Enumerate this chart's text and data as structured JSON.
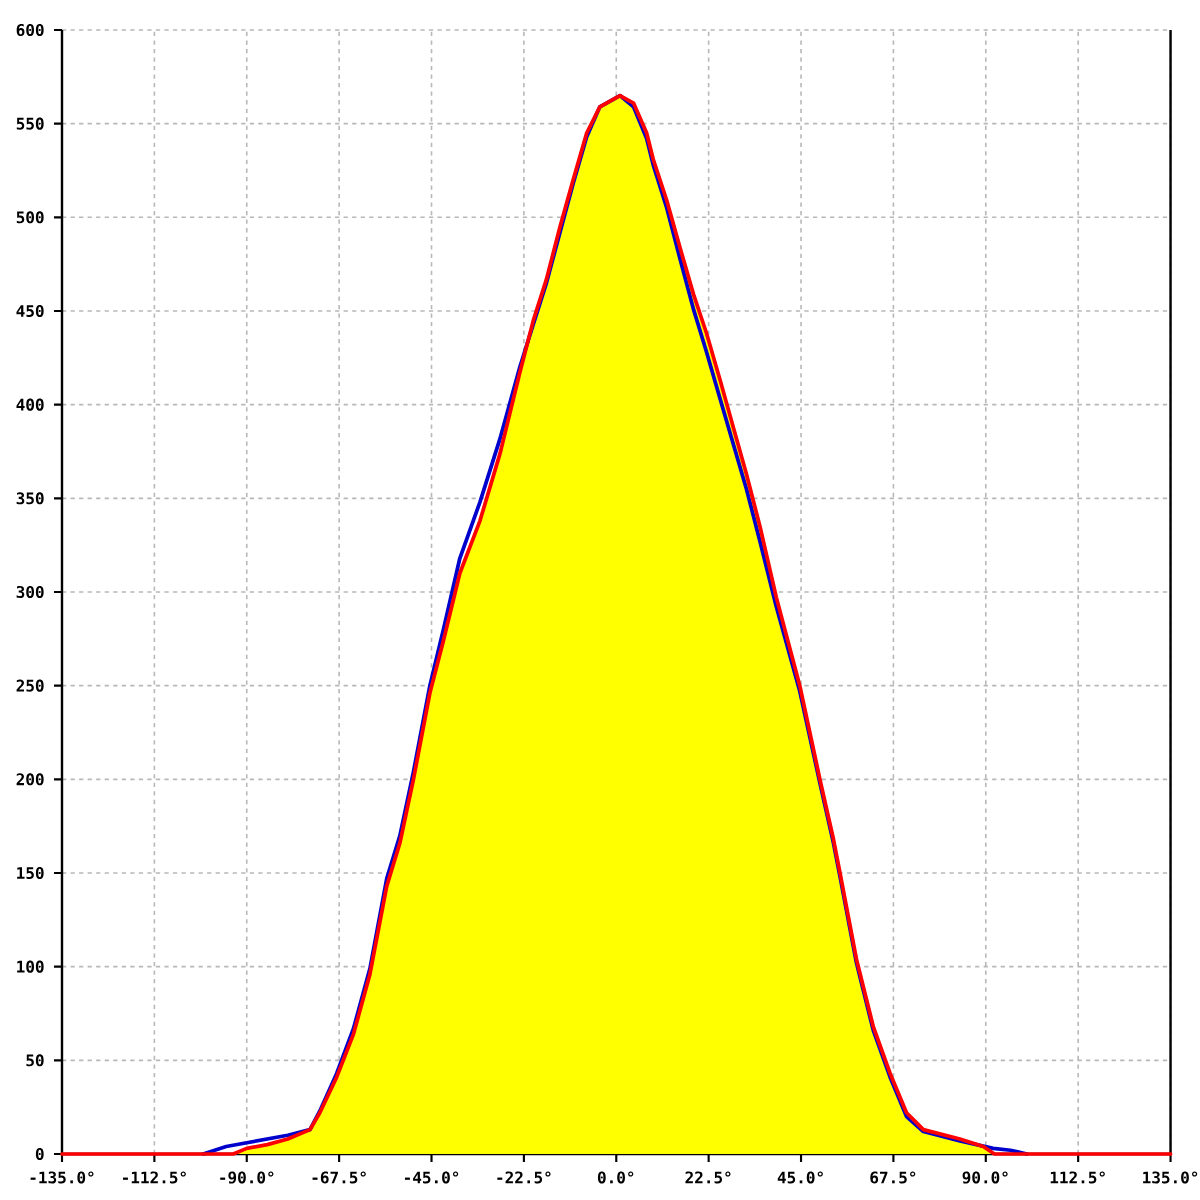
{
  "chart_data": {
    "type": "line",
    "xlim": [
      -135,
      135
    ],
    "ylim": [
      0,
      600
    ],
    "grid": true,
    "xticks": [
      {
        "value": -135,
        "label": "-135.0°"
      },
      {
        "value": -112.5,
        "label": "-112.5°"
      },
      {
        "value": -90,
        "label": "-90.0°"
      },
      {
        "value": -67.5,
        "label": "-67.5°"
      },
      {
        "value": -45,
        "label": "-45.0°"
      },
      {
        "value": -22.5,
        "label": "-22.5°"
      },
      {
        "value": 0,
        "label": "0.0°"
      },
      {
        "value": 22.5,
        "label": "22.5°"
      },
      {
        "value": 45,
        "label": "45.0°"
      },
      {
        "value": 67.5,
        "label": "67.5°"
      },
      {
        "value": 90,
        "label": "90.0°"
      },
      {
        "value": 112.5,
        "label": "112.5°"
      },
      {
        "value": 135,
        "label": "135.0°"
      }
    ],
    "yticks": [
      0,
      50,
      100,
      150,
      200,
      250,
      300,
      350,
      400,
      450,
      500,
      550,
      600
    ],
    "series": [
      {
        "type": "area",
        "color": "#ffff00",
        "x": [
          -93.3,
          -90,
          -85,
          -80,
          -74.6,
          -72.2,
          -68.1,
          -64,
          -60,
          -55.9,
          -52.7,
          -49.4,
          -45.4,
          -42.1,
          -38.1,
          -33.2,
          -28.3,
          -23.5,
          -20.2,
          -17,
          -13.7,
          -10.5,
          -7.2,
          -4,
          0.9,
          4.2,
          7.4,
          9,
          12.3,
          15.5,
          18.8,
          22,
          25.3,
          28.5,
          31.7,
          35,
          39,
          44.7,
          49.6,
          52.9,
          54.5,
          58.5,
          62.6,
          66.7,
          70.7,
          74.8,
          83.7,
          89.4,
          92.1
        ],
        "values": [
          0,
          3,
          5,
          8,
          13,
          22,
          41,
          64,
          96,
          143,
          166,
          200,
          246,
          274,
          310,
          338,
          374,
          417,
          445,
          467,
          495,
          520,
          545,
          559,
          565,
          561,
          545,
          531,
          509,
          484,
          459,
          438,
          413,
          388,
          363,
          335,
          297,
          250,
          200,
          168,
          150,
          104,
          68,
          43,
          22,
          13,
          8,
          4,
          0
        ]
      },
      {
        "color": "#0000cc",
        "x": [
          -100.6,
          -95,
          -90,
          -80,
          -74.6,
          -72.2,
          -68.1,
          -64,
          -60,
          -55.9,
          -52.7,
          -49.4,
          -45.4,
          -42.1,
          -38.1,
          -33.2,
          -28.3,
          -23.5,
          -20.2,
          -17,
          -13.7,
          -10.5,
          -7.2,
          -4,
          0.9,
          4.2,
          7.4,
          9,
          12.3,
          15.5,
          18.8,
          22,
          25.3,
          28.5,
          31.7,
          35,
          39,
          44.7,
          49.6,
          52.9,
          54.5,
          58.5,
          62.6,
          66.7,
          70.7,
          74.8,
          83.7,
          91.8,
          96,
          100
        ],
        "values": [
          0,
          4,
          6,
          10,
          13,
          23,
          43,
          67,
          99,
          147,
          170,
          204,
          250,
          280,
          318,
          348,
          382,
          420,
          443,
          465,
          492,
          518,
          543,
          559,
          565,
          559,
          542,
          528,
          505,
          478,
          451,
          428,
          403,
          379,
          355,
          327,
          292,
          247,
          198,
          166,
          148,
          102,
          66,
          41,
          20,
          12,
          7,
          3,
          2,
          0
        ]
      },
      {
        "color": "#ff0000",
        "x": [
          -135,
          -93.3,
          -90,
          -85,
          -80,
          -74.6,
          -72.2,
          -68.1,
          -64,
          -60,
          -55.9,
          -52.7,
          -49.4,
          -45.4,
          -42.1,
          -38.1,
          -33.2,
          -28.3,
          -23.5,
          -20.2,
          -17,
          -13.7,
          -10.5,
          -7.2,
          -4,
          0.9,
          4.2,
          7.4,
          9,
          12.3,
          15.5,
          18.8,
          22,
          25.3,
          28.5,
          31.7,
          35,
          39,
          44.7,
          49.6,
          52.9,
          54.5,
          58.5,
          62.6,
          66.7,
          70.7,
          74.8,
          83.7,
          89.4,
          92.1,
          135
        ],
        "values": [
          0,
          0,
          3,
          5,
          8,
          13,
          22,
          41,
          64,
          96,
          143,
          166,
          200,
          246,
          274,
          310,
          338,
          374,
          417,
          445,
          467,
          495,
          520,
          545,
          559,
          565,
          561,
          545,
          531,
          509,
          484,
          459,
          438,
          413,
          388,
          363,
          335,
          297,
          250,
          200,
          168,
          150,
          104,
          68,
          43,
          22,
          13,
          8,
          4,
          0,
          0
        ]
      }
    ]
  }
}
